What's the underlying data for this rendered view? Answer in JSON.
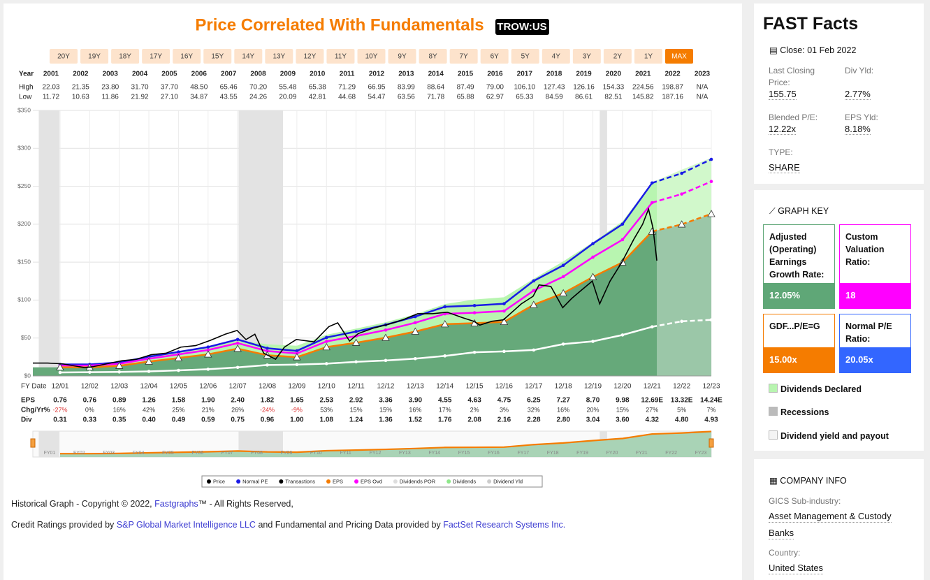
{
  "header": {
    "title": "Price Correlated With Fundamentals",
    "ticker": "TROW:US"
  },
  "ranges": [
    "20Y",
    "19Y",
    "18Y",
    "17Y",
    "16Y",
    "15Y",
    "14Y",
    "13Y",
    "12Y",
    "11Y",
    "10Y",
    "9Y",
    "8Y",
    "7Y",
    "6Y",
    "5Y",
    "4Y",
    "3Y",
    "2Y",
    "1Y",
    "MAX"
  ],
  "year_table": {
    "row_labels": [
      "Year",
      "High",
      "Low"
    ],
    "years": [
      "2001",
      "2002",
      "2003",
      "2004",
      "2005",
      "2006",
      "2007",
      "2008",
      "2009",
      "2010",
      "2011",
      "2012",
      "2013",
      "2014",
      "2015",
      "2016",
      "2017",
      "2018",
      "2019",
      "2020",
      "2021",
      "2022",
      "2023"
    ],
    "high": [
      "22.03",
      "21.35",
      "23.80",
      "31.70",
      "37.70",
      "48.50",
      "65.46",
      "70.20",
      "55.48",
      "65.38",
      "71.29",
      "66.95",
      "83.99",
      "88.64",
      "87.49",
      "79.00",
      "106.10",
      "127.43",
      "126.16",
      "154.33",
      "224.56",
      "198.87",
      "N/A"
    ],
    "low": [
      "11.72",
      "10.63",
      "11.86",
      "21.92",
      "27.10",
      "34.87",
      "43.55",
      "24.26",
      "20.09",
      "42.81",
      "44.68",
      "54.47",
      "63.56",
      "71.78",
      "65.88",
      "62.97",
      "65.33",
      "84.59",
      "86.61",
      "82.51",
      "145.82",
      "187.16",
      "N/A"
    ]
  },
  "chart_data": {
    "type": "line",
    "x_axis_label": "FY Date",
    "categories": [
      "12/01",
      "12/02",
      "12/03",
      "12/04",
      "12/05",
      "12/06",
      "12/07",
      "12/08",
      "12/09",
      "12/10",
      "12/11",
      "12/12",
      "12/13",
      "12/14",
      "12/15",
      "12/16",
      "12/17",
      "12/18",
      "12/19",
      "12/20",
      "12/21",
      "12/22",
      "12/23"
    ],
    "xlim": [
      2001,
      2023.92
    ],
    "ylim": [
      0,
      350
    ],
    "yticks": [
      {
        "value": 0,
        "label": "$0"
      },
      {
        "value": 50,
        "label": "$50"
      },
      {
        "value": 100,
        "label": "$100"
      },
      {
        "value": 150,
        "label": "$150"
      },
      {
        "value": 200,
        "label": "$200"
      },
      {
        "value": 250,
        "label": "$250"
      },
      {
        "value": 300,
        "label": "$300"
      },
      {
        "value": 350,
        "label": "$350"
      }
    ],
    "grid": true,
    "dashed_from_index": 20,
    "recessions": [
      [
        2001.2,
        2001.9
      ],
      [
        2007.95,
        2009.45
      ],
      [
        2020.15,
        2020.4
      ]
    ],
    "series": [
      {
        "color": "#1a1ae6",
        "marker": "dot",
        "values": [
          15.2,
          15.2,
          17.8,
          25.3,
          31.7,
          38.1,
          48.1,
          36.5,
          33.1,
          50.7,
          58.5,
          67.4,
          78.2,
          91.2,
          92.8,
          95.2,
          125.3,
          145.8,
          174.4,
          200.1,
          254.4,
          267.1,
          285.5
        ]
      },
      {
        "color": "#ff00ff",
        "marker": "dot",
        "values": [
          13.7,
          13.7,
          16.0,
          22.7,
          28.4,
          34.2,
          43.2,
          32.8,
          29.7,
          45.5,
          52.6,
          60.5,
          70.2,
          81.9,
          83.3,
          85.5,
          112.5,
          130.9,
          156.6,
          179.6,
          228.4,
          239.8,
          256.3
        ]
      },
      {
        "color": "#f57c00",
        "marker": "triangle",
        "values": [
          11.4,
          11.4,
          13.4,
          18.9,
          23.7,
          28.5,
          36.0,
          27.3,
          24.8,
          38.0,
          43.8,
          50.4,
          58.5,
          68.3,
          69.5,
          71.3,
          93.8,
          109.1,
          130.5,
          149.7,
          190.4,
          199.8,
          213.6
        ]
      },
      {
        "color": "#ffffff",
        "marker": "dot",
        "values": [
          4.65,
          4.95,
          5.25,
          6.0,
          7.35,
          8.85,
          11.25,
          14.4,
          15.0,
          16.2,
          18.6,
          20.4,
          22.8,
          26.4,
          31.2,
          32.4,
          34.2,
          42.0,
          45.6,
          54.0,
          64.8,
          72.0,
          73.95
        ]
      }
    ],
    "price": {
      "color": "#000000",
      "x": [
        2001.0,
        2001.5,
        2002.0,
        2002.75,
        2003.0,
        2003.5,
        2004.0,
        2004.5,
        2005.0,
        2005.5,
        2006.0,
        2006.5,
        2007.0,
        2007.5,
        2007.9,
        2008.2,
        2008.5,
        2008.8,
        2009.2,
        2009.5,
        2009.9,
        2010.5,
        2011.0,
        2011.3,
        2011.7,
        2012.0,
        2012.5,
        2013.0,
        2013.5,
        2014.0,
        2014.5,
        2015.0,
        2015.5,
        2015.9,
        2016.1,
        2016.5,
        2016.9,
        2017.5,
        2017.9,
        2018.1,
        2018.5,
        2018.9,
        2019.2,
        2019.5,
        2019.9,
        2020.15,
        2020.5,
        2020.9,
        2021.3,
        2021.6,
        2021.8,
        2021.95,
        2022.08
      ],
      "values": [
        17,
        17,
        16,
        11,
        12,
        16,
        20,
        22,
        28,
        30,
        38,
        40,
        47,
        55,
        60,
        48,
        55,
        30,
        22,
        38,
        48,
        45,
        65,
        70,
        46,
        56,
        63,
        68,
        74,
        82,
        82,
        84,
        77,
        72,
        67,
        72,
        74,
        95,
        105,
        120,
        118,
        90,
        102,
        112,
        125,
        95,
        125,
        150,
        180,
        200,
        220,
        195,
        152
      ]
    }
  },
  "fundamentals": {
    "labels": [
      "EPS",
      "Chg/Yr%",
      "Div"
    ],
    "eps": [
      "0.76",
      "0.76",
      "0.89",
      "1.26",
      "1.58",
      "1.90",
      "2.40",
      "1.82",
      "1.65",
      "2.53",
      "2.92",
      "3.36",
      "3.90",
      "4.55",
      "4.63",
      "4.75",
      "6.25",
      "7.27",
      "8.70",
      "9.98",
      "12.69E",
      "13.32E",
      "14.24E"
    ],
    "chg": [
      "-27%",
      "0%",
      "16%",
      "42%",
      "25%",
      "21%",
      "26%",
      "-24%",
      "-9%",
      "53%",
      "15%",
      "15%",
      "16%",
      "17%",
      "2%",
      "3%",
      "32%",
      "16%",
      "20%",
      "15%",
      "27%",
      "5%",
      "7%"
    ],
    "div": [
      "0.31",
      "0.33",
      "0.35",
      "0.40",
      "0.49",
      "0.59",
      "0.75",
      "0.96",
      "1.00",
      "1.08",
      "1.24",
      "1.36",
      "1.52",
      "1.76",
      "2.08",
      "2.16",
      "2.28",
      "2.80",
      "3.04",
      "3.60",
      "4.32",
      "4.80",
      "4.93"
    ]
  },
  "navigator_labels": [
    "FY01",
    "FY02",
    "FY03",
    "FY04",
    "FY05",
    "FY06",
    "FY07",
    "FY08",
    "FY09",
    "FY10",
    "FY11",
    "FY12",
    "FY13",
    "FY14",
    "FY15",
    "FY16",
    "FY17",
    "FY18",
    "FY19",
    "FY20",
    "FY21",
    "FY22",
    "FY23"
  ],
  "legend": [
    {
      "label": "Price",
      "color": "#000000"
    },
    {
      "label": "Normal PE",
      "color": "#1a1ae6"
    },
    {
      "label": "Transactions",
      "color": "#000000"
    },
    {
      "label": "EPS",
      "color": "#f57c00"
    },
    {
      "label": "EPS Ovd",
      "color": "#ff00ff"
    },
    {
      "label": "Dividends POR",
      "color": "#dddddd"
    },
    {
      "label": "Dividends",
      "color": "#8ee88a"
    },
    {
      "label": "Dividend Yld",
      "color": "#cccccc"
    }
  ],
  "footer": {
    "l1a": "Historical Graph - Copyright © 2022, ",
    "l1b": "Fastgraphs",
    "l1c": "™ - All Rights Reserved,",
    "l2a": "Credit Ratings provided by ",
    "l2b": "S&P Global Market Intelligence LLC",
    "l2c": " and Fundamental and Pricing Data provided by ",
    "l2d": "FactSet Research Systems Inc."
  },
  "facts": {
    "title": "FAST Facts",
    "close": "Close: 01 Feb 2022",
    "items": [
      {
        "label": "Last Closing Price:",
        "value": "155.75"
      },
      {
        "label": "Div Yld:",
        "value": "2.77%"
      },
      {
        "label": "Blended P/E:",
        "value": "12.22x"
      },
      {
        "label": "EPS Yld:",
        "value": "8.18%"
      },
      {
        "label": "TYPE:",
        "value": "SHARE"
      }
    ]
  },
  "graph_key": {
    "title": "GRAPH KEY",
    "boxes": [
      {
        "label": "Adjusted (Operating) Earnings Growth Rate:",
        "value": "12.05%",
        "color": "#5fa777"
      },
      {
        "label": "Custom Valuation Ratio:",
        "value": "18",
        "color": "#ff00ff"
      },
      {
        "label": "GDF...P/E=G",
        "value": "15.00x",
        "color": "#f57c00"
      },
      {
        "label": "Normal P/E Ratio:",
        "value": "20.05x",
        "color": "#3366ff"
      }
    ],
    "items": [
      {
        "label": "Dividends Declared",
        "color": "#b8f5b0"
      },
      {
        "label": "Recessions",
        "color": "#bbbbbb"
      },
      {
        "label": "Dividend yield and payout",
        "color": "#f4f4f4"
      }
    ]
  },
  "company": {
    "title": "COMPANY INFO",
    "sub_label": "GICS Sub-industry:",
    "sub_value_1": "Asset Management & Custody",
    "sub_value_2": "Banks",
    "country_label": "Country:",
    "country": "United States"
  }
}
